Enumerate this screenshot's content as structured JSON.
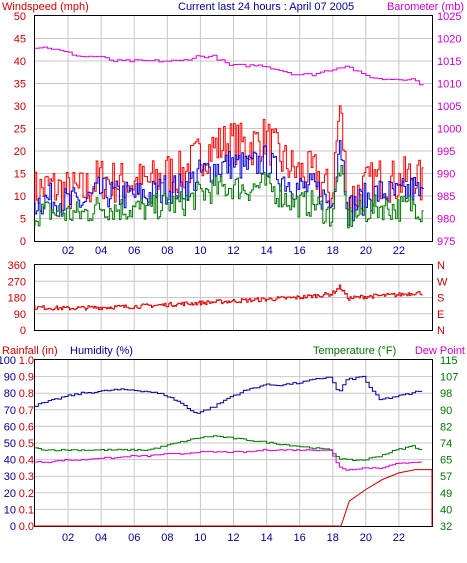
{
  "title": "Current last 24 hours : April 07 2005",
  "panel1": {
    "left_label": "Windspeed (mph)",
    "right_label": "Barometer (mb)",
    "left_ticks": [
      "0",
      "5",
      "10",
      "15",
      "20",
      "25",
      "30",
      "35",
      "40",
      "45",
      "50"
    ],
    "right_ticks": [
      "975",
      "980",
      "985",
      "990",
      "995",
      "1000",
      "1005",
      "1010",
      "1015",
      "1020",
      "1025"
    ]
  },
  "panel2": {
    "left_ticks": [
      "0",
      "90",
      "180",
      "270",
      "360"
    ],
    "right_ticks": [
      "N",
      "E",
      "S",
      "W",
      "N"
    ]
  },
  "panel3": {
    "rain_label": "Rainfall (in)",
    "humidity_label": "Humidity (%)",
    "temp_label": "Temperature (°F)",
    "dew_label": "Dew Point",
    "rain_ticks": [
      "0.0",
      "0.1",
      "0.2",
      "0.3",
      "0.4",
      "0.5",
      "0.6",
      "0.7",
      "0.8",
      "0.9",
      "1.0"
    ],
    "hum_ticks": [
      "0",
      "10",
      "20",
      "30",
      "40",
      "50",
      "60",
      "70",
      "80",
      "90",
      "100"
    ],
    "temp_ticks": [
      "32",
      "40",
      "49",
      "57",
      "65",
      "74",
      "82",
      "90",
      "98",
      "107",
      "115"
    ]
  },
  "x_ticks": [
    "02",
    "04",
    "06",
    "08",
    "10",
    "12",
    "14",
    "16",
    "18",
    "20",
    "22"
  ],
  "colors": {
    "wind_speed": "#ff0000",
    "wind_gust": "#0000dd",
    "wind_avg": "#007700",
    "barometer": "#dd00dd",
    "direction": "#dd0000",
    "humidity": "#000099",
    "temperature": "#007700",
    "dewpoint": "#dd00dd",
    "rainfall": "#cc0000",
    "grid": "#c8c8c8"
  },
  "chart_data": [
    {
      "type": "line",
      "title": "Current last 24 hours : April 07 2005",
      "x_range": [
        0,
        24
      ],
      "ylabel": "Windspeed (mph)",
      "ylim": [
        0,
        50
      ],
      "y2label": "Barometer (mb)",
      "y2lim": [
        975,
        1025
      ],
      "grid": true,
      "series": [
        {
          "name": "Windspeed (mph)",
          "axis": "left",
          "x": [
            0,
            1,
            2,
            3,
            4,
            5,
            6,
            7,
            8,
            9,
            10,
            11,
            12,
            13,
            14,
            15,
            16,
            17,
            18,
            18.5,
            19,
            20,
            21,
            22,
            23,
            23.5
          ],
          "values": [
            11,
            12,
            11,
            11,
            14,
            13,
            13,
            13,
            15,
            15,
            19,
            21,
            22,
            21,
            23,
            18,
            15,
            15,
            10,
            30,
            9,
            12,
            14,
            13,
            15,
            12
          ]
        },
        {
          "name": "Barometer (mb)",
          "axis": "right",
          "x": [
            0,
            1,
            2,
            3,
            4,
            5,
            6,
            7,
            8,
            9,
            10,
            11,
            12,
            13,
            14,
            15,
            16,
            17,
            18,
            19,
            20,
            21,
            22,
            23,
            23.5
          ],
          "values": [
            1018,
            1018,
            1017,
            1016,
            1016,
            1015,
            1015,
            1015,
            1015,
            1015,
            1016,
            1016,
            1014,
            1014,
            1014,
            1013,
            1012,
            1012,
            1013,
            1014,
            1012,
            1011,
            1011,
            1011,
            1010
          ]
        }
      ]
    },
    {
      "type": "line",
      "x_range": [
        0,
        24
      ],
      "ylim": [
        0,
        360
      ],
      "series": [
        {
          "x": [
            0,
            2,
            4,
            6,
            8,
            10,
            12,
            14,
            16,
            18,
            18.5,
            19,
            20,
            21,
            22,
            23,
            23.5
          ],
          "values": [
            125,
            120,
            125,
            130,
            140,
            150,
            160,
            170,
            180,
            200,
            240,
            175,
            185,
            190,
            195,
            205,
            205
          ]
        }
      ]
    },
    {
      "type": "line",
      "x_range": [
        0,
        24
      ],
      "series": [
        {
          "name": "Humidity (%)",
          "axis": "humidity",
          "ylim": [
            0,
            100
          ],
          "x": [
            0,
            1,
            2,
            3,
            4,
            5,
            6,
            7,
            8,
            9,
            9.5,
            10,
            11,
            12,
            13,
            14,
            15,
            16,
            17,
            18,
            18.5,
            19,
            20,
            20.5,
            21,
            22,
            23,
            23.5
          ],
          "values": [
            72,
            75,
            78,
            80,
            81,
            82,
            82,
            81,
            79,
            74,
            70,
            68,
            72,
            78,
            82,
            85,
            85,
            86,
            88,
            90,
            80,
            88,
            90,
            82,
            76,
            78,
            80,
            82
          ]
        },
        {
          "name": "Temperature (°F)",
          "axis": "temperature",
          "ylim": [
            32,
            115
          ],
          "x": [
            0,
            1,
            2,
            3,
            4,
            5,
            6,
            7,
            8,
            9,
            10,
            11,
            12,
            13,
            14,
            15,
            16,
            17,
            18,
            18.5,
            19,
            20,
            21,
            22,
            23,
            23.5
          ],
          "values": [
            71,
            70,
            70,
            70,
            70,
            70,
            70,
            70,
            72,
            74,
            76,
            77,
            76,
            75,
            74,
            73,
            72,
            71,
            70,
            66,
            65,
            65,
            67,
            70,
            72,
            70
          ]
        },
        {
          "name": "Dew Point",
          "axis": "temperature",
          "ylim": [
            32,
            115
          ],
          "x": [
            0,
            1,
            2,
            3,
            4,
            5,
            6,
            7,
            8,
            9,
            10,
            11,
            12,
            13,
            14,
            15,
            16,
            17,
            18,
            18.5,
            19,
            20,
            21,
            22,
            23,
            23.5
          ],
          "values": [
            64,
            64,
            65,
            65,
            66,
            66,
            67,
            67,
            68,
            68,
            69,
            69,
            69,
            69,
            70,
            70,
            70,
            70,
            70,
            62,
            60,
            61,
            61,
            63,
            64,
            64
          ]
        },
        {
          "name": "Rainfall (in)",
          "axis": "rainfall",
          "ylim": [
            0,
            1.0
          ],
          "x": [
            0,
            10,
            18,
            18.5,
            19,
            20,
            21,
            22,
            23,
            23.5
          ],
          "values": [
            0,
            0,
            0,
            0,
            0.15,
            0.22,
            0.28,
            0.32,
            0.34,
            0.34
          ]
        }
      ]
    }
  ]
}
